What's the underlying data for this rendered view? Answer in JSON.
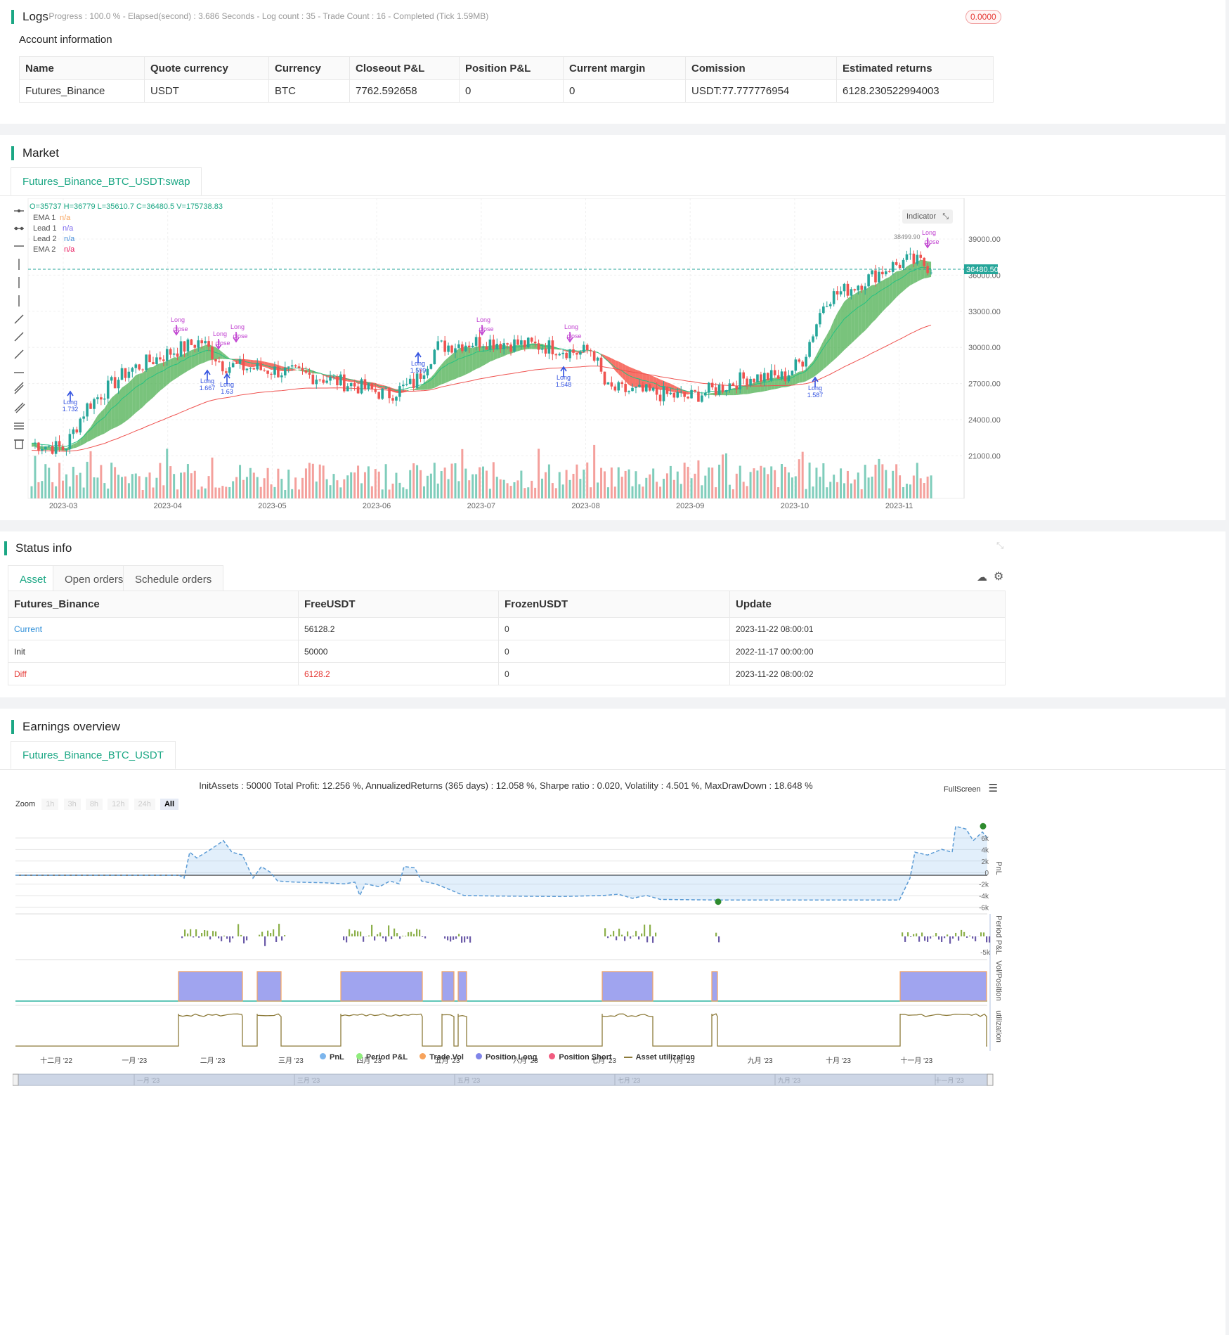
{
  "logs": {
    "title": "Logs",
    "summary": "- Progress : 100.0 % - Elapsed(second) : 3.686  Seconds - Log count : 35 - Trade Count : 16 - Completed (Tick 1.59MB)",
    "badge": "0.0000",
    "account_title": "Account information",
    "columns": [
      "Name",
      "Quote currency",
      "Currency",
      "Closeout P&L",
      "Position P&L",
      "Current margin",
      "Comission",
      "Estimated returns"
    ],
    "row": [
      "Futures_Binance",
      "USDT",
      "BTC",
      "7762.592658",
      "0",
      "0",
      "USDT:77.777776954",
      "6128.230522994003"
    ]
  },
  "market": {
    "title": "Market",
    "tab": "Futures_Binance_BTC_USDT:swap",
    "ohlc": "O=35737 H=36779 L=35610.7 C=36480.5 V=175738.83",
    "legend": [
      {
        "name": "EMA 1",
        "value": "n/a",
        "color": "#f7a35c"
      },
      {
        "name": "Lead 1",
        "value": "n/a",
        "color": "#7b68ee"
      },
      {
        "name": "Lead 2",
        "value": "n/a",
        "color": "#4a90d9"
      },
      {
        "name": "EMA 2",
        "value": "n/a",
        "color": "#e8175d"
      }
    ],
    "indicator_btn": "Indicator",
    "price_label": "36480.50",
    "high_label": "38499.90",
    "y_ticks": [
      "39000.00",
      "36000.00",
      "33000.00",
      "30000.00",
      "27000.00",
      "24000.00",
      "21000.00"
    ],
    "x_ticks": [
      "2023-03",
      "2023-04",
      "2023-05",
      "2023-06",
      "2023-07",
      "2023-08",
      "2023-09",
      "2023-10",
      "2023-11"
    ],
    "markers": [
      {
        "text": "Long",
        "sub": "close",
        "x": 253,
        "y": 458
      },
      {
        "text": "Long",
        "sub": "close",
        "x": 313,
        "y": 478
      },
      {
        "text": "Long",
        "sub": "close",
        "x": 338,
        "y": 468
      },
      {
        "text": "Long",
        "sub": "close",
        "x": 688,
        "y": 458
      },
      {
        "text": "Long",
        "sub": "close",
        "x": 813,
        "y": 468
      },
      {
        "text": "Long",
        "sub": "close",
        "x": 1322,
        "y": 334
      }
    ],
    "entries": [
      {
        "text": "Long",
        "val": "1.732",
        "x": 100,
        "y": 575
      },
      {
        "text": "Long",
        "val": "1.667",
        "x": 295,
        "y": 545
      },
      {
        "text": "Long",
        "val": "1.63",
        "x": 323,
        "y": 550
      },
      {
        "text": "Long",
        "val": "1.599",
        "x": 595,
        "y": 520
      },
      {
        "text": "Long",
        "val": "1.548",
        "x": 802,
        "y": 540
      },
      {
        "text": "Long",
        "val": "1.587",
        "x": 1160,
        "y": 555
      }
    ]
  },
  "status": {
    "title": "Status info",
    "tabs": [
      "Asset",
      "Open orders",
      "Schedule orders"
    ],
    "columns": [
      "Futures_Binance",
      "FreeUSDT",
      "FrozenUSDT",
      "Update"
    ],
    "rows": [
      [
        "Current",
        "56128.2",
        "0",
        "2023-11-22 08:00:01"
      ],
      [
        "Init",
        "50000",
        "0",
        "2022-11-17 00:00:00"
      ],
      [
        "Diff",
        "6128.2",
        "0",
        "2023-11-22 08:00:02"
      ]
    ]
  },
  "earnings": {
    "title": "Earnings overview",
    "tab": "Futures_Binance_BTC_USDT",
    "summary": "InitAssets : 50000 Total Profit: 12.256 %, AnnualizedReturns (365 days) : 12.058 %, Sharpe ratio : 0.020, Volatility : 4.501 %, MaxDrawDown : 18.648 %",
    "fullscreen": "FullScreen",
    "zoom_label": "Zoom",
    "zoom_options": [
      "1h",
      "3h",
      "8h",
      "12h",
      "24h",
      "All"
    ],
    "pnl_ticks": [
      "6k",
      "4k",
      "2k",
      "0",
      "-2k",
      "-4k",
      "-6k"
    ],
    "period_tick": "-5k",
    "axis_labels": [
      "PnL",
      "Period P&L",
      "Vol/Position",
      "utilization"
    ],
    "x_ticks": [
      "十二月 '22",
      "一月 '23",
      "二月 '23",
      "三月 '23",
      "四月 '23",
      "五月 '23",
      "六月 '23",
      "七月 '23",
      "八月 '23",
      "九月 '23",
      "十月 '23",
      "十一月 '23"
    ],
    "nav_ticks": [
      "一月 '23",
      "三月 '23",
      "五月 '23",
      "七月 '23",
      "九月 '23",
      "十一月 '23"
    ],
    "legend": [
      {
        "name": "PnL",
        "color": "#7cb5ec"
      },
      {
        "name": "Period P&L",
        "color": "#90ed7d"
      },
      {
        "name": "Trade Vol",
        "color": "#f7a35c"
      },
      {
        "name": "Position Long",
        "color": "#8085e9"
      },
      {
        "name": "Position Short",
        "color": "#f15c80"
      },
      {
        "name": "Asset utilization",
        "color": "#8d7b3a"
      }
    ]
  }
}
